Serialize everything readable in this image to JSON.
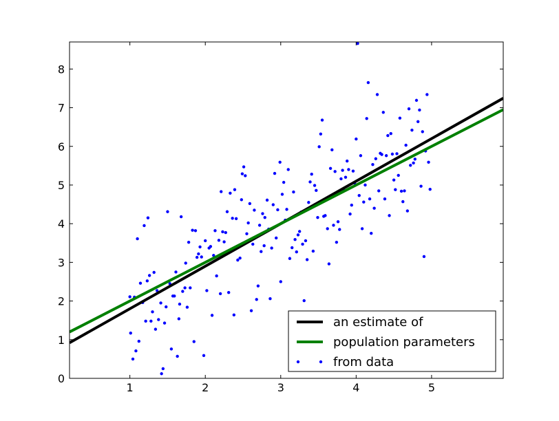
{
  "chart_data": {
    "type": "scatter",
    "title": "",
    "xlabel": "",
    "ylabel": "",
    "xlim": [
      0.2,
      5.95
    ],
    "ylim": [
      0,
      8.7
    ],
    "x_ticks": [
      "1",
      "2",
      "3",
      "4",
      "5"
    ],
    "y_ticks": [
      "0",
      "1",
      "2",
      "3",
      "4",
      "5",
      "6",
      "7",
      "8"
    ],
    "grid": false,
    "legend_position": "lower-right",
    "lines": [
      {
        "name": "an estimate of",
        "color": "#000000",
        "slope": 1.1,
        "intercept": 0.7
      },
      {
        "name": "population parameters",
        "color": "#008000",
        "slope": 1.0,
        "intercept": 1.0
      }
    ],
    "scatter": {
      "name": "from data",
      "color": "#0000ff",
      "points": [
        [
          1.0,
          2.11
        ],
        [
          1.01,
          1.17
        ],
        [
          1.04,
          0.5
        ],
        [
          1.06,
          2.1
        ],
        [
          1.08,
          0.71
        ],
        [
          1.1,
          3.61
        ],
        [
          1.12,
          0.96
        ],
        [
          1.14,
          2.46
        ],
        [
          1.17,
          1.96
        ],
        [
          1.19,
          3.95
        ],
        [
          1.21,
          1.48
        ],
        [
          1.23,
          2.52
        ],
        [
          1.24,
          4.15
        ],
        [
          1.26,
          2.66
        ],
        [
          1.28,
          1.48
        ],
        [
          1.3,
          1.72
        ],
        [
          1.32,
          2.74
        ],
        [
          1.34,
          1.27
        ],
        [
          1.36,
          2.27
        ],
        [
          1.38,
          1.52
        ],
        [
          1.41,
          1.95
        ],
        [
          1.42,
          0.12
        ],
        [
          1.44,
          0.25
        ],
        [
          1.46,
          1.43
        ],
        [
          1.48,
          1.85
        ],
        [
          1.5,
          4.31
        ],
        [
          1.53,
          2.45
        ],
        [
          1.55,
          0.76
        ],
        [
          1.57,
          2.13
        ],
        [
          1.59,
          2.13
        ],
        [
          1.61,
          2.75
        ],
        [
          1.63,
          0.57
        ],
        [
          1.65,
          1.54
        ],
        [
          1.66,
          1.92
        ],
        [
          1.68,
          4.18
        ],
        [
          1.7,
          2.25
        ],
        [
          1.73,
          2.34
        ],
        [
          1.74,
          2.98
        ],
        [
          1.76,
          1.84
        ],
        [
          1.78,
          3.52
        ],
        [
          1.8,
          2.34
        ],
        [
          1.83,
          3.83
        ],
        [
          1.85,
          0.95
        ],
        [
          1.87,
          3.82
        ],
        [
          1.89,
          3.13
        ],
        [
          1.91,
          3.22
        ],
        [
          1.93,
          3.4
        ],
        [
          1.95,
          3.14
        ],
        [
          1.98,
          0.59
        ],
        [
          2.0,
          3.56
        ],
        [
          2.02,
          2.27
        ],
        [
          2.05,
          3.37
        ],
        [
          2.07,
          3.41
        ],
        [
          2.09,
          1.63
        ],
        [
          2.11,
          3.18
        ],
        [
          2.13,
          3.82
        ],
        [
          2.15,
          2.65
        ],
        [
          2.18,
          3.57
        ],
        [
          2.2,
          2.19
        ],
        [
          2.21,
          4.83
        ],
        [
          2.23,
          3.79
        ],
        [
          2.25,
          3.53
        ],
        [
          2.27,
          3.77
        ],
        [
          2.29,
          4.31
        ],
        [
          2.31,
          2.22
        ],
        [
          2.33,
          4.79
        ],
        [
          2.36,
          4.14
        ],
        [
          2.38,
          1.64
        ],
        [
          2.39,
          4.88
        ],
        [
          2.41,
          4.13
        ],
        [
          2.43,
          3.06
        ],
        [
          2.46,
          3.11
        ],
        [
          2.48,
          4.62
        ],
        [
          2.49,
          5.29
        ],
        [
          2.51,
          5.47
        ],
        [
          2.53,
          5.24
        ],
        [
          2.55,
          3.74
        ],
        [
          2.57,
          4.02
        ],
        [
          2.59,
          4.52
        ],
        [
          2.61,
          1.75
        ],
        [
          2.63,
          3.47
        ],
        [
          2.65,
          4.35
        ],
        [
          2.68,
          2.04
        ],
        [
          2.7,
          2.39
        ],
        [
          2.72,
          3.96
        ],
        [
          2.74,
          3.28
        ],
        [
          2.76,
          4.26
        ],
        [
          2.78,
          3.43
        ],
        [
          2.79,
          4.16
        ],
        [
          2.82,
          4.61
        ],
        [
          2.84,
          3.86
        ],
        [
          2.86,
          2.06
        ],
        [
          2.88,
          3.37
        ],
        [
          2.9,
          4.49
        ],
        [
          2.92,
          5.3
        ],
        [
          2.94,
          3.63
        ],
        [
          2.96,
          4.36
        ],
        [
          2.99,
          5.59
        ],
        [
          3.0,
          2.5
        ],
        [
          3.02,
          4.76
        ],
        [
          3.04,
          5.07
        ],
        [
          3.06,
          4.09
        ],
        [
          3.08,
          4.37
        ],
        [
          3.1,
          5.4
        ],
        [
          3.12,
          3.1
        ],
        [
          3.15,
          3.38
        ],
        [
          3.17,
          4.82
        ],
        [
          3.19,
          3.59
        ],
        [
          3.21,
          3.27
        ],
        [
          3.23,
          3.71
        ],
        [
          3.25,
          3.8
        ],
        [
          3.27,
          4.3
        ],
        [
          3.29,
          3.47
        ],
        [
          3.31,
          2.01
        ],
        [
          3.33,
          3.56
        ],
        [
          3.35,
          3.07
        ],
        [
          3.37,
          4.55
        ],
        [
          3.39,
          5.08
        ],
        [
          3.41,
          5.28
        ],
        [
          3.43,
          3.29
        ],
        [
          3.45,
          4.99
        ],
        [
          3.47,
          4.86
        ],
        [
          3.49,
          4.16
        ],
        [
          3.51,
          5.99
        ],
        [
          3.53,
          6.32
        ],
        [
          3.55,
          6.68
        ],
        [
          3.57,
          4.19
        ],
        [
          3.59,
          4.21
        ],
        [
          3.62,
          3.87
        ],
        [
          3.64,
          2.96
        ],
        [
          3.66,
          5.43
        ],
        [
          3.68,
          5.91
        ],
        [
          3.7,
          3.96
        ],
        [
          3.72,
          5.35
        ],
        [
          3.74,
          3.52
        ],
        [
          3.76,
          4.05
        ],
        [
          3.78,
          3.85
        ],
        [
          3.8,
          5.16
        ],
        [
          3.82,
          5.38
        ],
        [
          3.84,
          4.86
        ],
        [
          3.86,
          5.2
        ],
        [
          3.88,
          5.62
        ],
        [
          3.9,
          5.4
        ],
        [
          3.92,
          4.25
        ],
        [
          3.94,
          4.48
        ],
        [
          3.96,
          5.36
        ],
        [
          3.98,
          5.05
        ],
        [
          4.0,
          6.19
        ],
        [
          4.02,
          8.66
        ],
        [
          4.04,
          4.73
        ],
        [
          4.06,
          5.76
        ],
        [
          4.08,
          3.87
        ],
        [
          4.1,
          4.56
        ],
        [
          4.12,
          5.0
        ],
        [
          4.14,
          6.72
        ],
        [
          4.16,
          7.65
        ],
        [
          4.18,
          4.64
        ],
        [
          4.2,
          3.75
        ],
        [
          4.22,
          5.53
        ],
        [
          4.24,
          4.4
        ],
        [
          4.26,
          5.68
        ],
        [
          4.28,
          7.34
        ],
        [
          4.3,
          4.85
        ],
        [
          4.32,
          5.82
        ],
        [
          4.34,
          5.79
        ],
        [
          4.36,
          6.88
        ],
        [
          4.38,
          4.64
        ],
        [
          4.4,
          5.76
        ],
        [
          4.42,
          6.28
        ],
        [
          4.44,
          4.21
        ],
        [
          4.46,
          6.33
        ],
        [
          4.48,
          5.8
        ],
        [
          4.5,
          5.13
        ],
        [
          4.52,
          4.88
        ],
        [
          4.54,
          5.81
        ],
        [
          4.56,
          5.25
        ],
        [
          4.58,
          6.73
        ],
        [
          4.6,
          4.84
        ],
        [
          4.62,
          4.57
        ],
        [
          4.64,
          4.85
        ],
        [
          4.66,
          6.03
        ],
        [
          4.68,
          4.33
        ],
        [
          4.7,
          6.97
        ],
        [
          4.72,
          5.51
        ],
        [
          4.74,
          6.42
        ],
        [
          4.76,
          5.57
        ],
        [
          4.78,
          5.67
        ],
        [
          4.8,
          7.19
        ],
        [
          4.82,
          6.64
        ],
        [
          4.84,
          6.94
        ],
        [
          4.86,
          4.97
        ],
        [
          4.88,
          6.38
        ],
        [
          4.9,
          3.15
        ],
        [
          4.92,
          5.88
        ],
        [
          4.94,
          7.34
        ],
        [
          4.96,
          5.59
        ],
        [
          4.98,
          4.89
        ]
      ]
    }
  }
}
